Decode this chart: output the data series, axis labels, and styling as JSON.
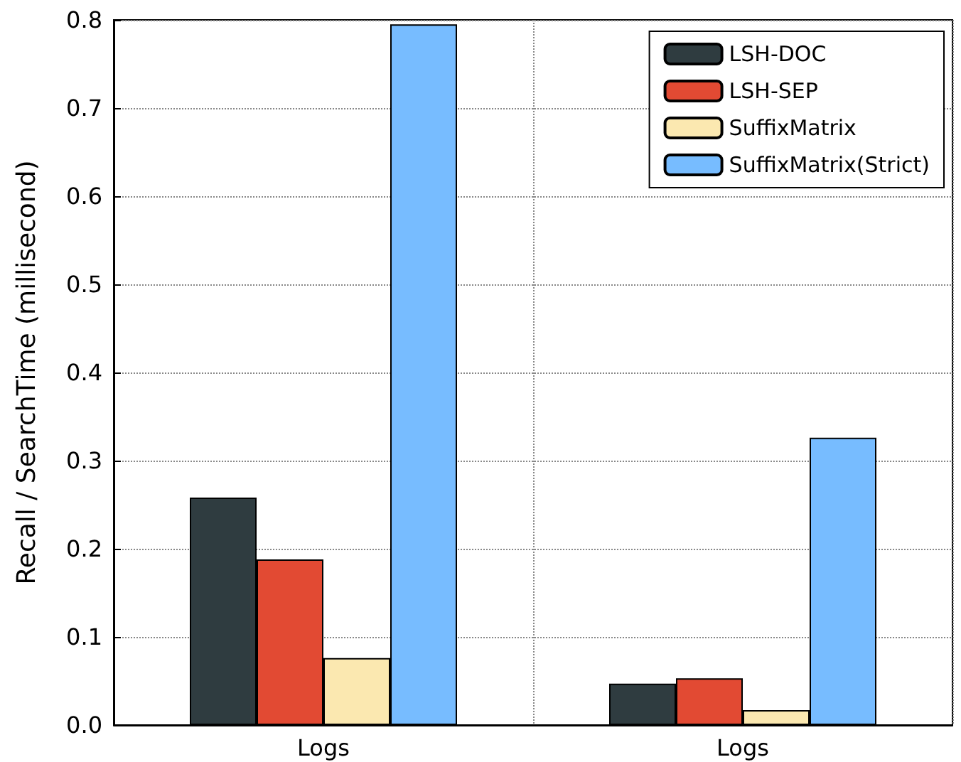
{
  "chart_data": {
    "type": "bar",
    "ylabel": "Recall / SearchTime (millisecond)",
    "categories": [
      "Logs",
      "Logs"
    ],
    "series": [
      {
        "name": "LSH-DOC",
        "color": "#2f3c40",
        "values": [
          0.258,
          0.047
        ]
      },
      {
        "name": "LSH-SEP",
        "color": "#e24a33",
        "values": [
          0.188,
          0.053
        ]
      },
      {
        "name": "SuffixMatrix",
        "color": "#fbe8b0",
        "values": [
          0.076,
          0.017
        ]
      },
      {
        "name": "SuffixMatrix(Strict)",
        "color": "#77bcff",
        "values": [
          0.795,
          0.326
        ]
      }
    ],
    "ylim": [
      0,
      0.8
    ],
    "yticks": [
      {
        "value": 0,
        "label": "0.0"
      },
      0.1,
      0.2,
      0.3,
      0.4,
      0.5,
      0.6,
      0.7,
      0.8
    ],
    "grid": true,
    "legend": "top right"
  }
}
